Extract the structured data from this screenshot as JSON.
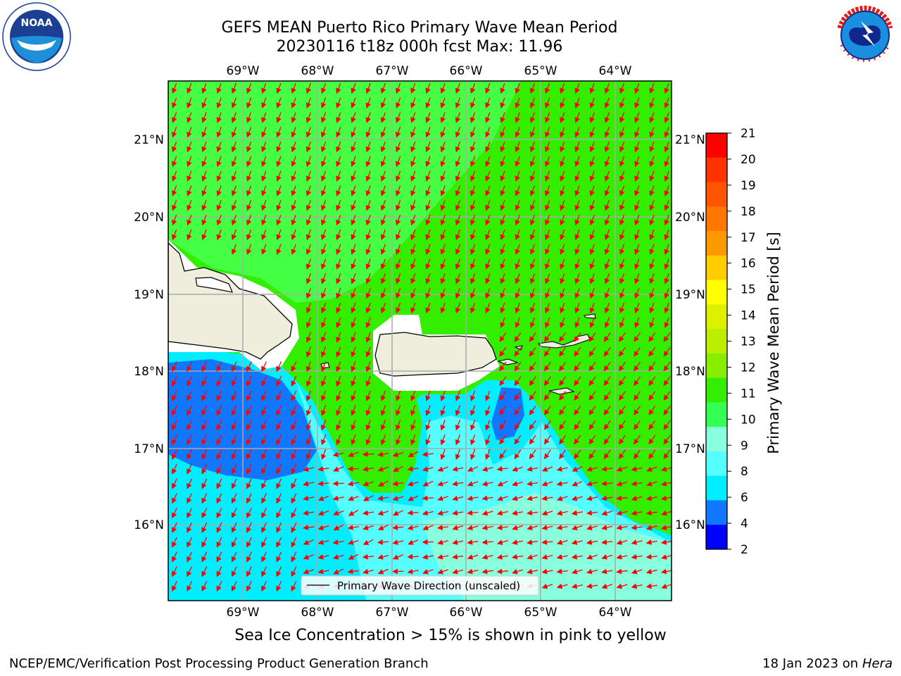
{
  "header": {
    "title_line1": "GEFS MEAN Puerto Rico Primary Wave Mean Period",
    "title_line2": "20230116 t18z 000h fcst   Max: 11.96"
  },
  "logos": {
    "left": "noaa-logo",
    "right": "nws-logo",
    "left_ring_text": "NATIONAL OCEANIC AND ATMOSPHERIC ADMINISTRATION · U.S. DEPARTMENT OF COMMERCE",
    "left_center_text": "NOAA",
    "right_ring_text": "NATIONAL WEATHER SERVICE"
  },
  "map": {
    "lon_labels": [
      "69°W",
      "68°W",
      "67°W",
      "66°W",
      "65°W",
      "64°W"
    ],
    "lat_labels": [
      "21°N",
      "20°N",
      "19°N",
      "18°N",
      "17°N",
      "16°N"
    ],
    "legend_label": "Primary Wave Direction (unscaled)",
    "arrow_color": "#ff0000",
    "land_color": "#efeedd"
  },
  "colorbar": {
    "label": "Primary Wave Mean Period [s]",
    "ticks": [
      "21",
      "20",
      "19",
      "18",
      "17",
      "16",
      "15",
      "14",
      "13",
      "12",
      "11",
      "10",
      "9",
      "8",
      "6",
      "4",
      "2"
    ],
    "colors": [
      "#ff0000",
      "#ff3300",
      "#ff5500",
      "#ff7700",
      "#ff9900",
      "#ffcc00",
      "#ffff00",
      "#ddf000",
      "#bbee00",
      "#88ee00",
      "#33ee00",
      "#33ff55",
      "#88ffdd",
      "#55ffff",
      "#00eeff",
      "#1177ff",
      "#0000ff"
    ]
  },
  "footer": {
    "caption": "Sea Ice Concentration > 15% is shown in pink to yellow",
    "left": "NCEP/EMC/Verification Post Processing Product Generation Branch",
    "right_text": "18 Jan 2023 on ",
    "right_italic": "Hera"
  }
}
